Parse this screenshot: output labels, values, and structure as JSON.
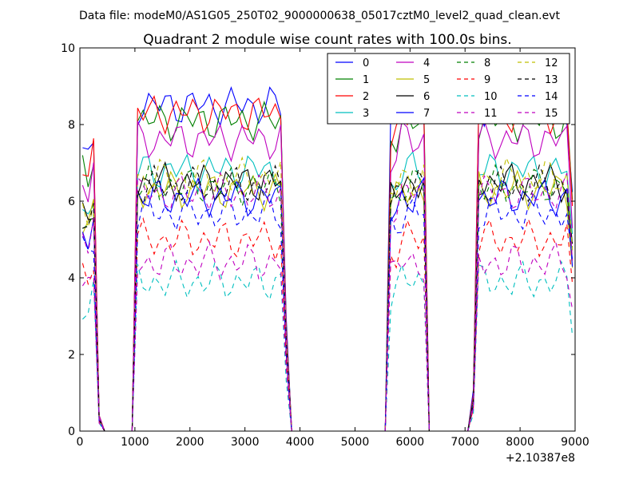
{
  "figure": {
    "suptitle": "Data file: modeM0/AS1G05_250T02_9000000638_05017cztM0_level2_quad_clean.evt"
  },
  "chart_data": {
    "type": "line",
    "title": "Quadrant 2 module wise count rates with 100.0s bins.",
    "xlabel": "",
    "ylabel": "",
    "x_offset_label": "+2.10387e8",
    "xlim": [
      0,
      9000
    ],
    "ylim": [
      0,
      10
    ],
    "xticks": [
      0,
      1000,
      2000,
      3000,
      4000,
      5000,
      6000,
      7000,
      8000,
      9000
    ],
    "yticks": [
      0,
      2,
      4,
      6,
      8,
      10
    ],
    "grid": false,
    "legend": {
      "position": "top-right",
      "ncol": 4
    },
    "x": [
      50,
      150,
      250,
      350,
      450,
      550,
      650,
      750,
      850,
      950,
      1050,
      1150,
      1250,
      1350,
      1450,
      1550,
      1650,
      1750,
      1850,
      1950,
      2050,
      2150,
      2250,
      2350,
      2450,
      2550,
      2650,
      2750,
      2850,
      2950,
      3050,
      3150,
      3250,
      3350,
      3450,
      3550,
      3650,
      3750,
      3850,
      3950,
      4050,
      4150,
      4250,
      4350,
      4450,
      4550,
      4650,
      4750,
      4850,
      4950,
      5050,
      5150,
      5250,
      5350,
      5450,
      5550,
      5650,
      5750,
      5850,
      5950,
      6050,
      6150,
      6250,
      6350,
      6450,
      6550,
      6650,
      6750,
      6850,
      6950,
      7050,
      7150,
      7250,
      7350,
      7450,
      7550,
      7650,
      7750,
      7850,
      7950,
      8050,
      8150,
      8250,
      8350,
      8450,
      8550,
      8650,
      8750,
      8850,
      8950
    ],
    "series": [
      {
        "name": "0",
        "color": "#0000ff",
        "style": "solid",
        "base": 8.5
      },
      {
        "name": "1",
        "color": "#008000",
        "style": "solid",
        "base": 8.1
      },
      {
        "name": "2",
        "color": "#ff0000",
        "style": "solid",
        "base": 8.3
      },
      {
        "name": "3",
        "color": "#00bfbf",
        "style": "solid",
        "base": 6.8
      },
      {
        "name": "4",
        "color": "#bf00bf",
        "style": "solid",
        "base": 7.6
      },
      {
        "name": "5",
        "color": "#bfbf00",
        "style": "solid",
        "base": 6.3
      },
      {
        "name": "6",
        "color": "#000000",
        "style": "solid",
        "base": 6.5
      },
      {
        "name": "7",
        "color": "#0000ff",
        "style": "solid",
        "base": 6.1
      },
      {
        "name": "8",
        "color": "#008000",
        "style": "dashed",
        "base": 6.4
      },
      {
        "name": "9",
        "color": "#ff0000",
        "style": "dashed",
        "base": 5.0
      },
      {
        "name": "10",
        "color": "#00bfbf",
        "style": "dashed",
        "base": 3.9
      },
      {
        "name": "11",
        "color": "#bf00bf",
        "style": "dashed",
        "base": 4.4
      },
      {
        "name": "12",
        "color": "#bfbf00",
        "style": "dashed",
        "base": 6.6
      },
      {
        "name": "13",
        "color": "#000000",
        "style": "dashed",
        "base": 6.4
      },
      {
        "name": "14",
        "color": "#0000ff",
        "style": "dashed",
        "base": 5.7
      },
      {
        "name": "15",
        "color": "#bf00bf",
        "style": "dashed",
        "base": 6.2
      }
    ],
    "activity_profile": [
      0.85,
      0.82,
      0.9,
      0.05,
      0,
      0,
      0,
      0,
      0,
      0,
      1.0,
      1.0,
      1.0,
      1.0,
      1.0,
      1.0,
      1.0,
      1.0,
      1.0,
      1.0,
      1.0,
      1.0,
      1.0,
      1.0,
      1.0,
      1.0,
      1.0,
      1.0,
      1.0,
      1.0,
      1.0,
      1.0,
      1.0,
      1.0,
      1.0,
      1.0,
      1.0,
      0.35,
      0,
      0,
      0,
      0,
      0,
      0,
      0,
      0,
      0,
      0,
      0,
      0,
      0,
      0,
      0,
      0,
      0,
      0,
      0.93,
      0.95,
      1.0,
      1.0,
      1.0,
      1.0,
      1.0,
      0.0,
      0,
      0,
      0,
      0,
      0,
      0,
      0,
      0.12,
      1.0,
      1.0,
      1.0,
      1.0,
      1.0,
      1.0,
      1.0,
      1.0,
      1.0,
      1.0,
      1.0,
      1.0,
      1.0,
      1.0,
      1.0,
      1.0,
      1.0,
      0.72
    ]
  }
}
